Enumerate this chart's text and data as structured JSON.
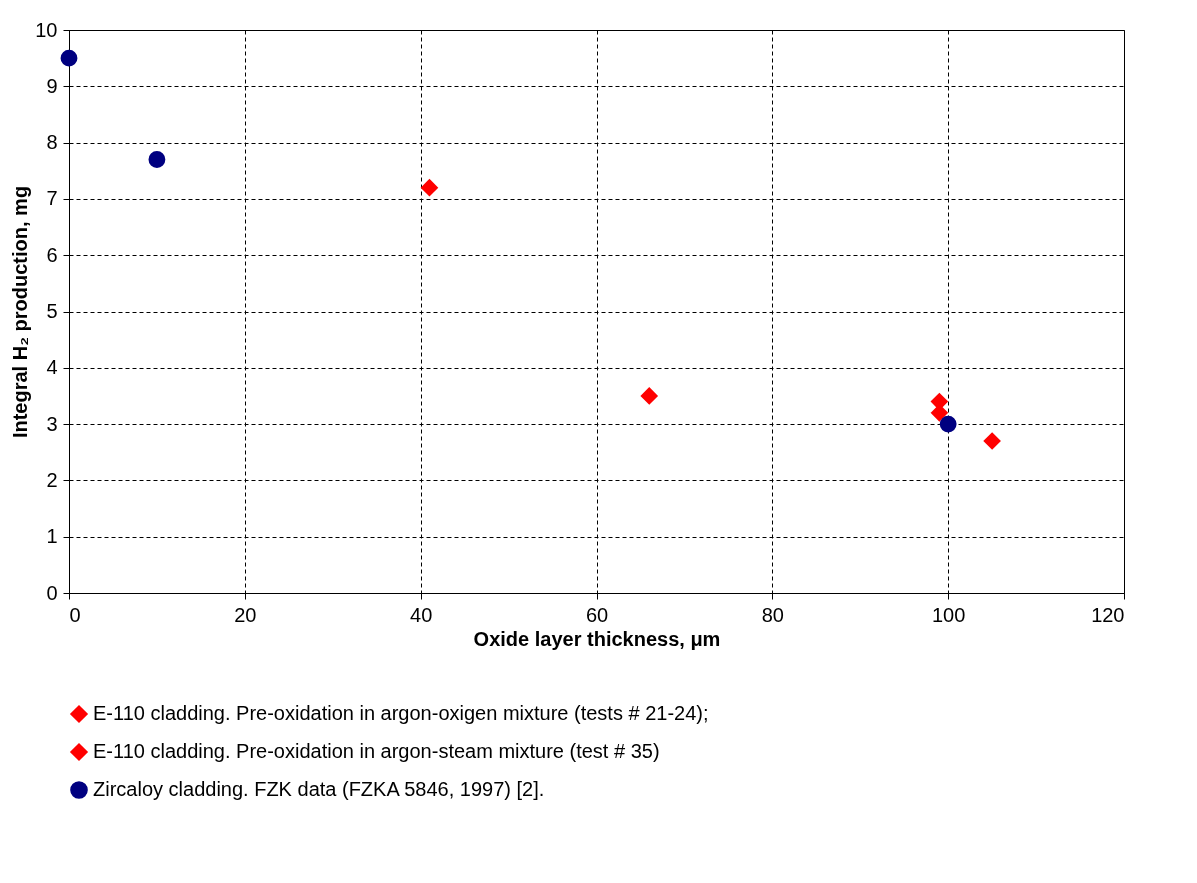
{
  "chart_data": {
    "type": "scatter",
    "xlabel": "Oxide layer thickness, μm",
    "ylabel": "Integral H₂ production, mg",
    "xlim": [
      0,
      120
    ],
    "xticks": [
      0,
      20,
      40,
      60,
      80,
      100,
      120
    ],
    "ylim": [
      0,
      10
    ],
    "yticks": [
      0,
      1,
      2,
      3,
      4,
      5,
      6,
      7,
      8,
      9,
      10
    ],
    "grid": true,
    "line_style": "dashed",
    "legend": "bottom",
    "series": [
      {
        "name": "E-110 cladding. Pre-oxidation in argon-oxigen mixture (tests # 21-24);",
        "color": "#ff0000",
        "marker": "diamond",
        "x": [
          41,
          66,
          99,
          105
        ],
        "values": [
          7.2,
          3.5,
          3.4,
          2.7
        ]
      },
      {
        "name": "E-110 cladding. Pre-oxidation in argon-steam mixture (test # 35)",
        "color": "#ff0000",
        "marker": "diamond",
        "x": [
          99
        ],
        "values": [
          3.2
        ]
      },
      {
        "name": "Zircaloy cladding. FZK data (FZKA 5846, 1997) [2].",
        "color": "#000080",
        "marker": "circle",
        "x": [
          0,
          10,
          100
        ],
        "values": [
          9.5,
          7.7,
          3.0
        ]
      }
    ]
  }
}
